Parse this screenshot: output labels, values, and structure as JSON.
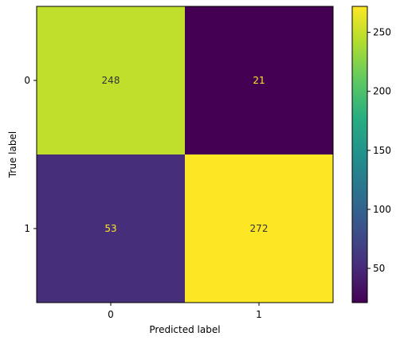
{
  "chart_data": {
    "type": "heatmap",
    "title": "",
    "xlabel": "Predicted label",
    "ylabel": "True label",
    "x_categories": [
      "0",
      "1"
    ],
    "y_categories": [
      "0",
      "1"
    ],
    "matrix": [
      [
        248,
        21
      ],
      [
        53,
        272
      ]
    ],
    "cell_text_colors": [
      [
        "#333333",
        "#fde725"
      ],
      [
        "#fde725",
        "#333333"
      ]
    ],
    "colormap": "viridis",
    "colorbar": {
      "range": [
        21,
        272
      ],
      "ticks": [
        50,
        100,
        150,
        200,
        250
      ],
      "tick_labels": [
        "50",
        "100",
        "150",
        "200",
        "250"
      ]
    }
  }
}
